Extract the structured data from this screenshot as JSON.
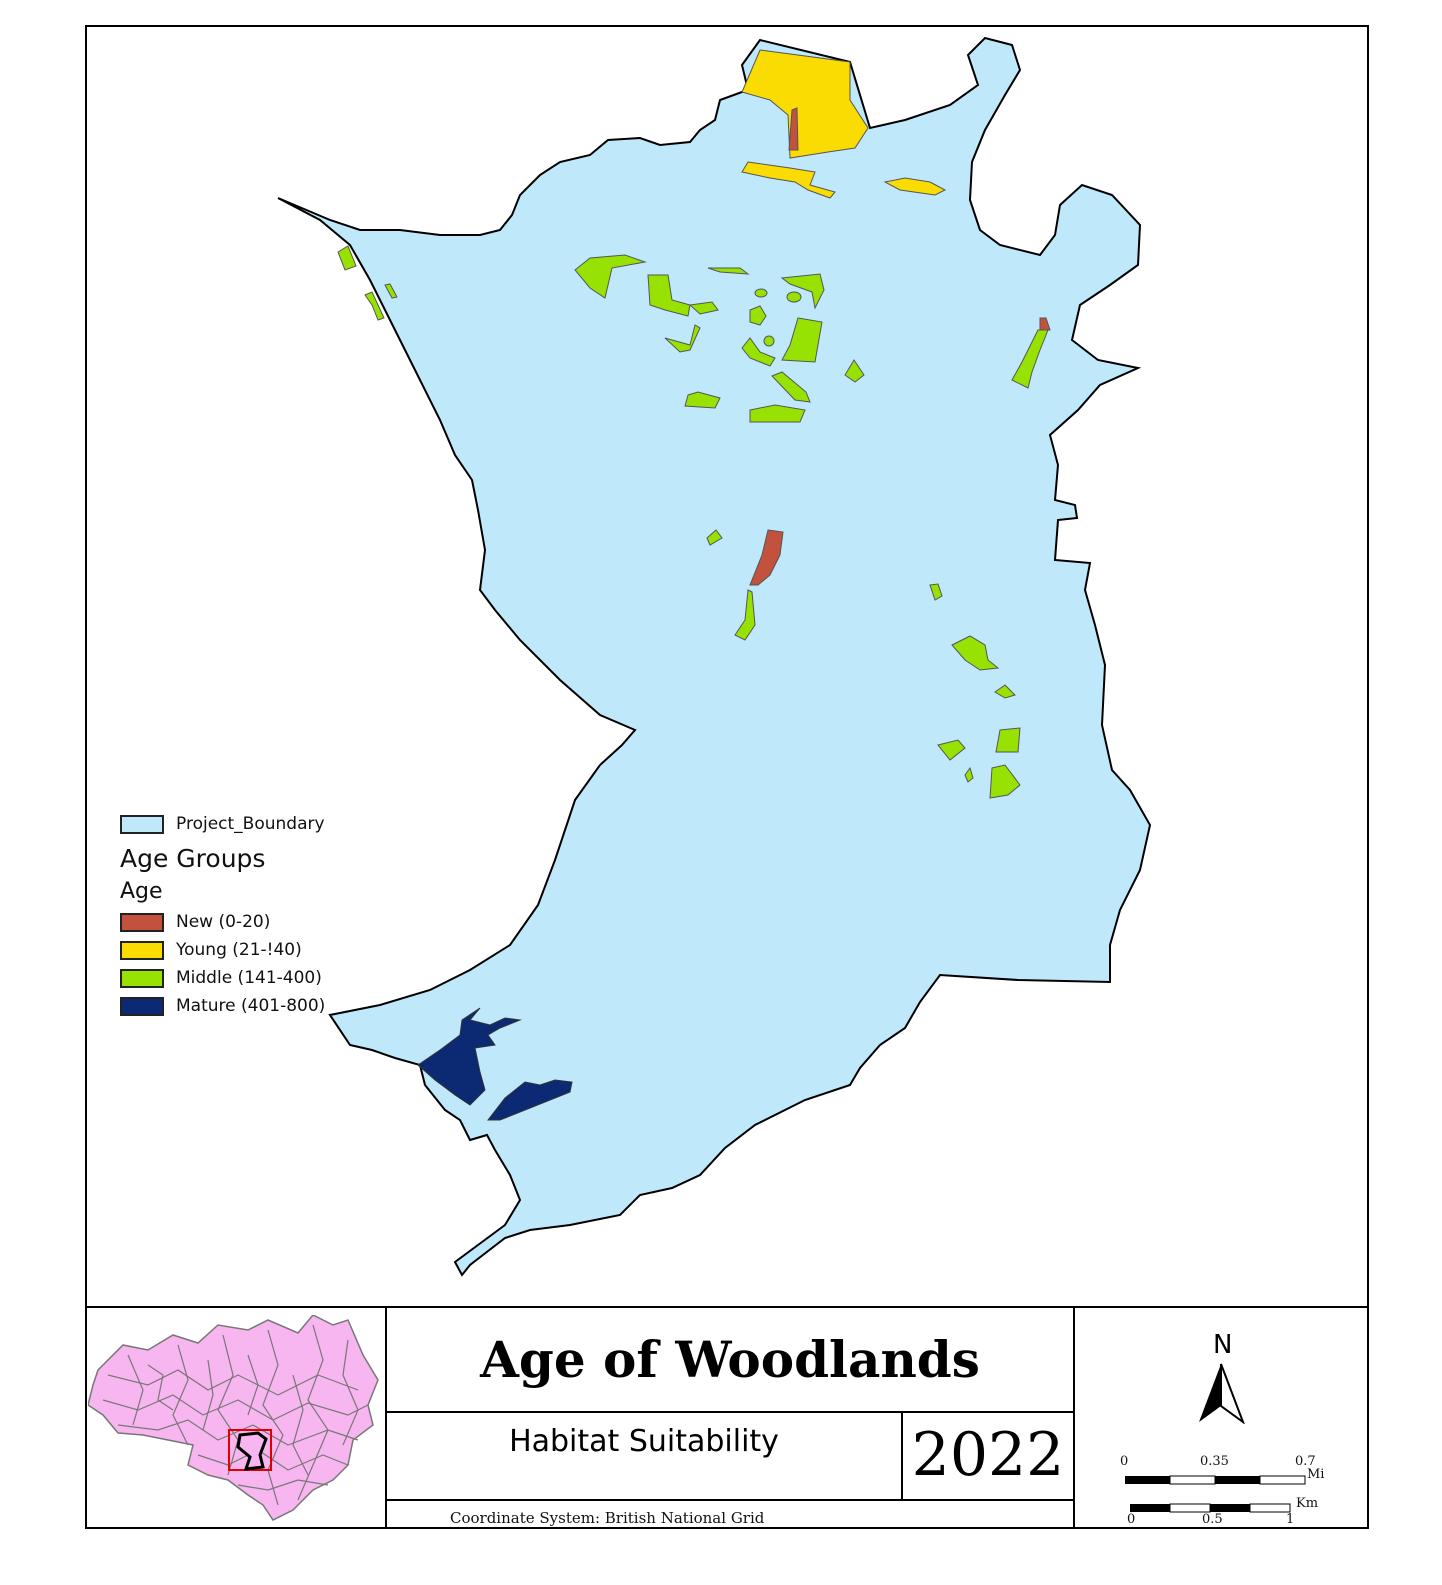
{
  "map": {
    "title": "Age of Woodlands",
    "subtitle": "Habitat Suitability",
    "year": "2022",
    "coordinate_system": "Coordinate System: British National Grid",
    "north_label": "N"
  },
  "legend": {
    "boundary_label": "Project_Boundary",
    "boundary_color": "#bfe8fb",
    "group_title": "Age Groups",
    "field_title": "Age",
    "classes": [
      {
        "label": "New (0-20)",
        "color": "#c2523e"
      },
      {
        "label": "Young (21-!40)",
        "color": "#fadb02"
      },
      {
        "label": "Middle (141-400)",
        "color": "#98e203"
      },
      {
        "label": "Mature (401-800)",
        "color": "#0c2a73"
      }
    ]
  },
  "scale_bar": {
    "miles": {
      "ticks": [
        "0",
        "0.35",
        "0.7"
      ],
      "unit": "Mi"
    },
    "km": {
      "ticks": [
        "0",
        "0.5",
        "1"
      ],
      "unit": "Km"
    }
  },
  "inset": {
    "region_color": "#f7b6ef",
    "grid_color": "#777777",
    "highlight_color": "#e00000"
  }
}
